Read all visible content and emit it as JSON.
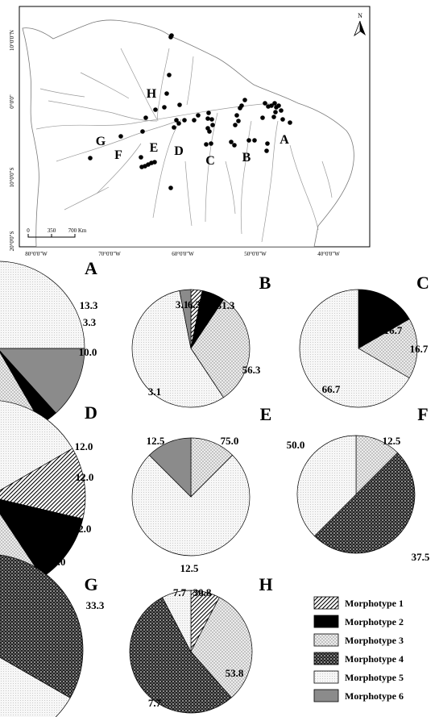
{
  "map": {
    "lat_labels": [
      "10°0'0\"N",
      "0°0'0\"",
      "10°0'0\"S",
      "20°0'0\"S"
    ],
    "lon_labels": [
      "80°0'0\"W",
      "70°0'0\"W",
      "60°0'0\"W",
      "50°0'0\"W",
      "40°0'0\"W"
    ],
    "scale_labels": [
      "0",
      "350",
      "700 Km"
    ],
    "north_label": "N",
    "region_labels": [
      "A",
      "B",
      "C",
      "D",
      "E",
      "F",
      "G",
      "H"
    ]
  },
  "legend": [
    {
      "label": "Morphotype 1",
      "pattern": "diagonal-stripes"
    },
    {
      "label": "Morphotype 2",
      "pattern": "solid-black"
    },
    {
      "label": "Morphotype 3",
      "pattern": "crosshatch-light"
    },
    {
      "label": "Morphotype 4",
      "pattern": "checker-dark"
    },
    {
      "label": "Morphotype 5",
      "pattern": "dots-light"
    },
    {
      "label": "Morphotype 6",
      "pattern": "solid-gray"
    }
  ],
  "chart_data": [
    {
      "type": "pie",
      "title": "A",
      "categories": [
        "Morphotype 6",
        "Morphotype 2",
        "Morphotype 3",
        "Morphotype 4",
        "Morphotype 5"
      ],
      "values": [
        13.3,
        3.3,
        10.0,
        43.3,
        30.1
      ],
      "labels": [
        "13.3",
        "3.3",
        "10.0"
      ]
    },
    {
      "type": "pie",
      "title": "B",
      "categories": [
        "Morphotype 1",
        "Morphotype 2",
        "Morphotype 3",
        "Morphotype 5",
        "Morphotype 6"
      ],
      "values": [
        3.1,
        6.3,
        31.3,
        56.3,
        3.1
      ],
      "labels": [
        "3.1",
        "6.3",
        "31.3",
        "56.3",
        "3.1"
      ]
    },
    {
      "type": "pie",
      "title": "C",
      "categories": [
        "Morphotype 2",
        "Morphotype 3",
        "Morphotype 5"
      ],
      "values": [
        16.7,
        16.7,
        66.7
      ],
      "labels": [
        "16.7",
        "16.7",
        "66.7"
      ]
    },
    {
      "type": "pie",
      "title": "D",
      "categories": [
        "Morphotype 1",
        "Morphotype 2",
        "Morphotype 3",
        "Morphotype 4",
        "Morphotype 5"
      ],
      "values": [
        12.0,
        12.0,
        12.0,
        20.0,
        44.0
      ],
      "labels": [
        "12.0",
        "12.0",
        "12.0",
        "20.0"
      ]
    },
    {
      "type": "pie",
      "title": "E",
      "categories": [
        "Morphotype 3",
        "Morphotype 5",
        "Morphotype 6"
      ],
      "values": [
        12.5,
        75.0,
        12.5
      ],
      "labels": [
        "12.5",
        "75.0",
        "12.5"
      ]
    },
    {
      "type": "pie",
      "title": "F",
      "categories": [
        "Morphotype 3",
        "Morphotype 4",
        "Morphotype 5"
      ],
      "values": [
        12.5,
        50.0,
        37.5
      ],
      "labels": [
        "12.5",
        "50.0",
        "37.5"
      ]
    },
    {
      "type": "pie",
      "title": "G",
      "categories": [
        "Morphotype 4",
        "Morphotype 5"
      ],
      "values": [
        33.3,
        66.7
      ],
      "labels": [
        "33.3"
      ]
    },
    {
      "type": "pie",
      "title": "H",
      "categories": [
        "Morphotype 1",
        "Morphotype 3",
        "Morphotype 4",
        "Morphotype 5"
      ],
      "values": [
        7.7,
        30.8,
        53.8,
        7.7
      ],
      "labels": [
        "7.7",
        "30.8",
        "53.8",
        "7.7"
      ]
    }
  ]
}
